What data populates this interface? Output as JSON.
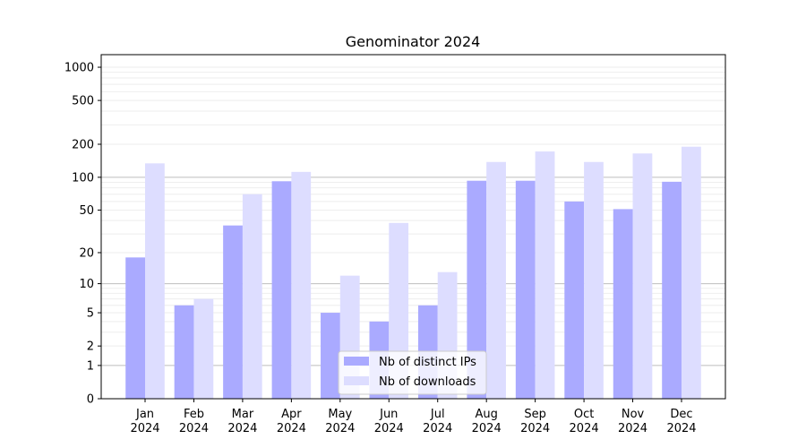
{
  "chart_data": {
    "type": "bar",
    "title": "Genominator 2024",
    "xlabel": "",
    "ylabel": "",
    "y_scale": "symlog",
    "ylim": [
      0,
      1300
    ],
    "y_ticks": [
      0,
      1,
      2,
      5,
      10,
      20,
      50,
      100,
      200,
      500,
      1000
    ],
    "y_tick_labels": [
      "0",
      "1",
      "2",
      "5",
      "10",
      "20",
      "50",
      "100",
      "200",
      "500",
      "1000"
    ],
    "grid": true,
    "legend_position": "lower-center",
    "categories": [
      "Jan\n2024",
      "Feb\n2024",
      "Mar\n2024",
      "Apr\n2024",
      "May\n2024",
      "Jun\n2024",
      "Jul\n2024",
      "Aug\n2024",
      "Sep\n2024",
      "Oct\n2024",
      "Nov\n2024",
      "Dec\n2024"
    ],
    "category_lines": [
      [
        "Jan",
        "2024"
      ],
      [
        "Feb",
        "2024"
      ],
      [
        "Mar",
        "2024"
      ],
      [
        "Apr",
        "2024"
      ],
      [
        "May",
        "2024"
      ],
      [
        "Jun",
        "2024"
      ],
      [
        "Jul",
        "2024"
      ],
      [
        "Aug",
        "2024"
      ],
      [
        "Sep",
        "2024"
      ],
      [
        "Oct",
        "2024"
      ],
      [
        "Nov",
        "2024"
      ],
      [
        "Dec",
        "2024"
      ]
    ],
    "series": [
      {
        "name": "Nb of distinct IPs",
        "color": "#aaaaff",
        "values": [
          18,
          6,
          36,
          92,
          5,
          4,
          6,
          93,
          93,
          60,
          51,
          91
        ]
      },
      {
        "name": "Nb of downloads",
        "color": "#ddddff",
        "values": [
          134,
          7,
          70,
          112,
          12,
          38,
          13,
          138,
          172,
          138,
          165,
          190
        ]
      }
    ]
  }
}
